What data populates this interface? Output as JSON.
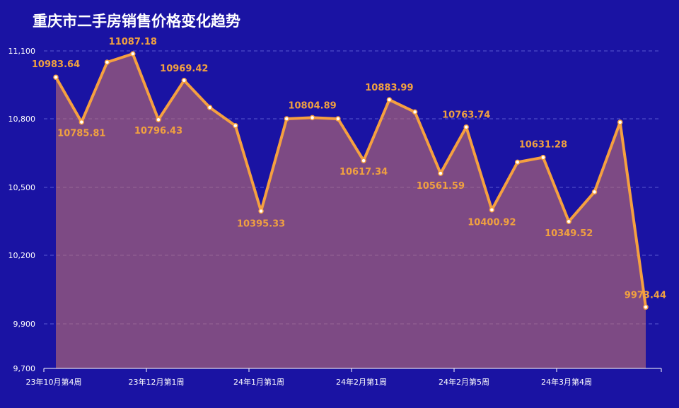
{
  "title": "重庆市二手房销售价格变化趋势",
  "chart_data": {
    "type": "area",
    "title": "重庆市二手房销售价格变化趋势",
    "xlabel": "",
    "ylabel": "",
    "ylim": [
      9700,
      11100
    ],
    "yticks": [
      9700,
      9900,
      10200,
      10500,
      10800,
      11100
    ],
    "ytick_labels": [
      "9,700",
      "9,900",
      "10,200",
      "10,500",
      "10,800",
      "11,100"
    ],
    "x_tick_labels": [
      "23年10月第4周",
      "23年12月第1周",
      "24年1月第1周",
      "24年2月第1周",
      "24年2月第5周",
      "24年3月第4周"
    ],
    "x_tick_positions": [
      0,
      4,
      8,
      12,
      16,
      20
    ],
    "values": [
      10983.64,
      10785.81,
      11050,
      11087.18,
      10796.43,
      10969.42,
      10850,
      10770,
      10395.33,
      10800,
      10804.89,
      10800,
      10617.34,
      10883.99,
      10830,
      10561.59,
      10763.74,
      10400.92,
      10610,
      10631.28,
      10349.52,
      10480,
      10785,
      9973.44
    ],
    "data_labels": [
      {
        "index": 0,
        "text": "10983.64"
      },
      {
        "index": 1,
        "text": "10785.81"
      },
      {
        "index": 3,
        "text": "11087.18"
      },
      {
        "index": 4,
        "text": "10796.43"
      },
      {
        "index": 5,
        "text": "10969.42"
      },
      {
        "index": 8,
        "text": "10395.33"
      },
      {
        "index": 10,
        "text": "10804.89"
      },
      {
        "index": 12,
        "text": "10617.34"
      },
      {
        "index": 13,
        "text": "10883.99"
      },
      {
        "index": 15,
        "text": "10561.59"
      },
      {
        "index": 16,
        "text": "10763.74"
      },
      {
        "index": 17,
        "text": "10400.92"
      },
      {
        "index": 19,
        "text": "10631.28"
      },
      {
        "index": 20,
        "text": "10349.52"
      },
      {
        "index": 23,
        "text": "9973.44"
      }
    ],
    "grid": true,
    "colors": {
      "background": "#1a13a3",
      "line": "#f5a040",
      "area": "#c07070",
      "label": "#f0a040",
      "grid": "#5a5ad0",
      "axis": "#ffffff"
    }
  }
}
